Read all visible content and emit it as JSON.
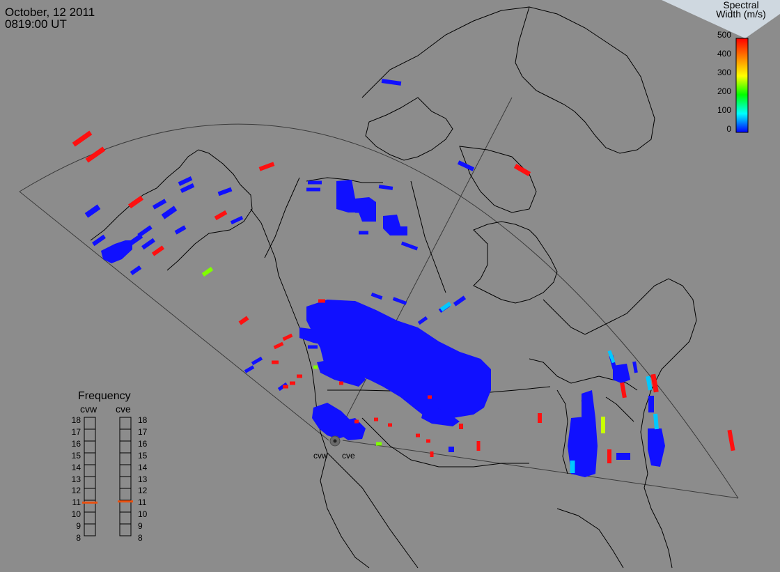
{
  "header": {
    "date": "October, 12 2011",
    "time": "0819:00 UT"
  },
  "colorbar": {
    "title_line1": "Spectral",
    "title_line2": "Width (m/s)",
    "ticks": [
      "500",
      "400",
      "300",
      "200",
      "100",
      "0"
    ],
    "scale_min": 0,
    "scale_max": 500
  },
  "frequency_panel": {
    "title": "Frequency",
    "radars": [
      "cvw",
      "cve"
    ],
    "scale_labels": [
      "18",
      "17",
      "16",
      "15",
      "14",
      "13",
      "12",
      "11",
      "10",
      "9",
      "8"
    ],
    "current_mhz": {
      "cvw": 10.8,
      "cve": 10.9
    }
  },
  "radar_sites": [
    "cvw",
    "cve"
  ],
  "colors": {
    "background": "#8c8c8c",
    "coastline": "#000000",
    "fov_outline": "#3a3a3a",
    "frequency_marker": "#e85010",
    "low_width": "#1010ff",
    "high_width": "#ff1010"
  }
}
